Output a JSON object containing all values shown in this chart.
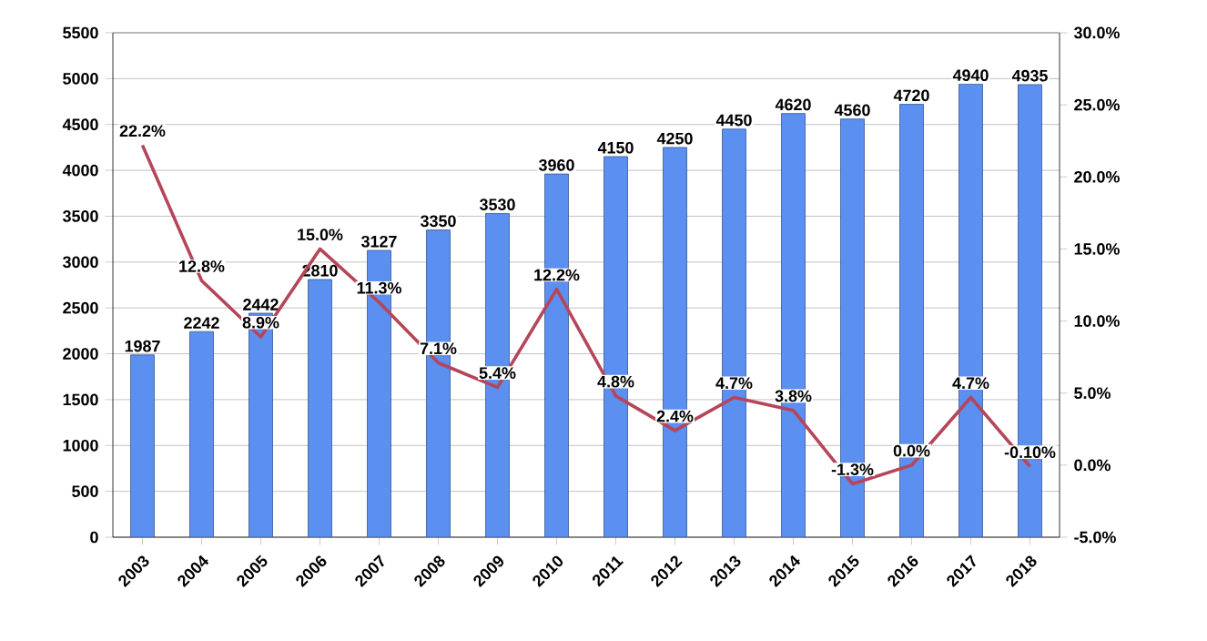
{
  "chart_data": {
    "type": "bar",
    "categories": [
      "2003",
      "2004",
      "2005",
      "2006",
      "2007",
      "2008",
      "2009",
      "2010",
      "2011",
      "2012",
      "2013",
      "2014",
      "2015",
      "2016",
      "2017",
      "2018"
    ],
    "series": [
      {
        "color": "#5b8ff0",
        "values": [
          1987,
          2242,
          2442,
          2810,
          3127,
          3350,
          3530,
          3960,
          4150,
          4250,
          4450,
          4620,
          4560,
          4720,
          4940,
          4935
        ],
        "value_labels": [
          "1987",
          "2242",
          "2442",
          "2810",
          "3127",
          "3350",
          "3530",
          "3960",
          "4150",
          "4250",
          "4450",
          "4620",
          "4560",
          "4720",
          "4940",
          "4935"
        ]
      },
      {
        "type": "line",
        "axis": "y2",
        "color": "#b5465a",
        "values": [
          22.2,
          12.8,
          8.9,
          15.0,
          11.3,
          7.1,
          5.4,
          12.2,
          4.8,
          2.4,
          4.7,
          3.8,
          -1.3,
          0.0,
          4.7,
          -0.1
        ],
        "value_labels": [
          "22.2%",
          "12.8%",
          "8.9%",
          "15.0%",
          "11.3%",
          "7.1%",
          "5.4%",
          "12.2%",
          "4.8%",
          "2.4%",
          "4.7%",
          "3.8%",
          "-1.3%",
          "0.0%",
          "4.7%",
          "-0.10%"
        ]
      }
    ],
    "ylim": [
      0,
      5500
    ],
    "yticks": [
      0,
      500,
      1000,
      1500,
      2000,
      2500,
      3000,
      3500,
      4000,
      4500,
      5000,
      5500
    ],
    "y2lim": [
      -5,
      30
    ],
    "y2ticks": [
      {
        "value": -5,
        "label": "-5.0%"
      },
      {
        "value": 0,
        "label": "0.0%"
      },
      {
        "value": 5,
        "label": "5.0%"
      },
      {
        "value": 10,
        "label": "10.0%"
      },
      {
        "value": 15,
        "label": "15.0%"
      },
      {
        "value": 20,
        "label": "20.0%"
      },
      {
        "value": 25,
        "label": "25.0%"
      },
      {
        "value": 30,
        "label": "30.0%"
      }
    ],
    "grid": "y",
    "marker": "none"
  }
}
